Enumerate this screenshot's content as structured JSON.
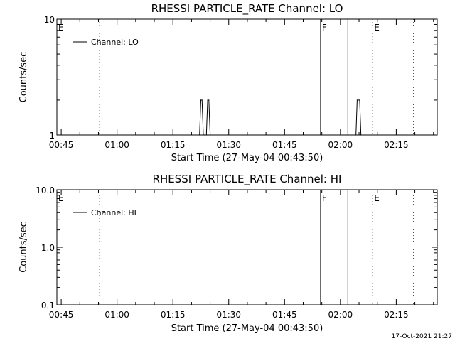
{
  "chart_data": [
    {
      "type": "line",
      "title": "RHESSI PARTICLE_RATE Channel: LO",
      "ylabel": "Counts/sec",
      "xlabel": "Start Time (27-May-04 00:43:50)",
      "y_scale": "log",
      "ylim": [
        1,
        10
      ],
      "ytick_labels": [
        "1",
        "10"
      ],
      "xlim": [
        "00:43:50",
        "02:26:00"
      ],
      "xtick_labels": [
        "00:45",
        "01:00",
        "01:15",
        "01:30",
        "01:45",
        "02:00",
        "02:15"
      ],
      "legend": {
        "position": "top-left",
        "entries": [
          "Channel: LO"
        ]
      },
      "markers": [
        {
          "label": "E",
          "time": "00:43:50",
          "style": "none"
        },
        {
          "label": "",
          "time": "00:55:20",
          "style": "dotted"
        },
        {
          "label": "F",
          "time": "01:54:40",
          "style": "solid"
        },
        {
          "label": "",
          "time": "02:02:00",
          "style": "solid"
        },
        {
          "label": "E",
          "time": "02:08:40",
          "style": "dotted"
        },
        {
          "label": "",
          "time": "02:19:40",
          "style": "dotted"
        }
      ],
      "series": [
        {
          "name": "Channel: LO",
          "x": [
            "01:22:10",
            "01:22:30",
            "01:22:50",
            "01:23:10",
            "01:23:30",
            "01:24:00",
            "01:24:20",
            "01:24:40",
            "01:25:00",
            "02:04:10",
            "02:04:30",
            "02:05:10",
            "02:05:30"
          ],
          "y": [
            1,
            2,
            2,
            1,
            1,
            1,
            2,
            2,
            1,
            1,
            2,
            2,
            1
          ]
        }
      ]
    },
    {
      "type": "line",
      "title": "RHESSI PARTICLE_RATE Channel: HI",
      "ylabel": "Counts/sec",
      "xlabel": "Start Time (27-May-04 00:43:50)",
      "y_scale": "log",
      "ylim": [
        0.1,
        10
      ],
      "ytick_labels": [
        "0.1",
        "1.0",
        "10.0"
      ],
      "xlim": [
        "00:43:50",
        "02:26:00"
      ],
      "xtick_labels": [
        "00:45",
        "01:00",
        "01:15",
        "01:30",
        "01:45",
        "02:00",
        "02:15"
      ],
      "legend": {
        "position": "top-left",
        "entries": [
          "Channel: HI"
        ]
      },
      "markers": [
        {
          "label": "E",
          "time": "00:43:50",
          "style": "none"
        },
        {
          "label": "",
          "time": "00:55:20",
          "style": "dotted"
        },
        {
          "label": "F",
          "time": "01:54:40",
          "style": "solid"
        },
        {
          "label": "",
          "time": "02:02:00",
          "style": "solid"
        },
        {
          "label": "E",
          "time": "02:08:40",
          "style": "dotted"
        },
        {
          "label": "",
          "time": "02:19:40",
          "style": "dotted"
        }
      ],
      "series": [
        {
          "name": "Channel: HI",
          "x": [],
          "y": []
        }
      ]
    }
  ],
  "footer": {
    "timestamp": "17-Oct-2021 21:27"
  },
  "colors": {
    "line": "#000000",
    "background": "#ffffff"
  }
}
